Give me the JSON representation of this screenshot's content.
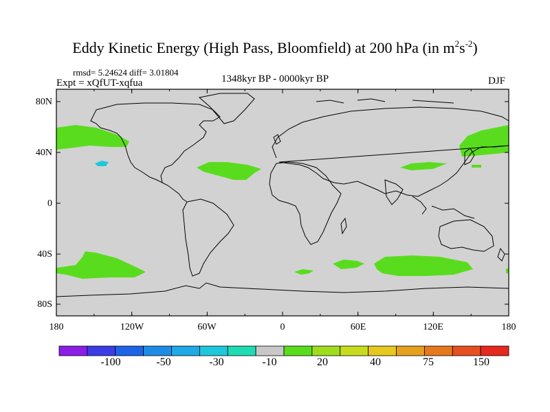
{
  "title": {
    "main": "Eddy Kinetic Energy (High Pass, Bloomfield) at 200 hPa (in m",
    "sup1": "2",
    "mid": "s",
    "sup2": "-2",
    "close": ")"
  },
  "stats": "rmsd= 5.24624 diff= 3.01804",
  "experiment": "Expt = xQfUT-xqfua",
  "period": "1348kyr BP - 0000kyr BP",
  "season": "DJF",
  "lat_labels": [
    "80N",
    "40N",
    "0",
    "40S",
    "80S"
  ],
  "lon_labels": [
    "180",
    "120W",
    "60W",
    "0",
    "60E",
    "120E",
    "180"
  ],
  "colorbar": {
    "colors": [
      "#8c1ee6",
      "#3c3ce6",
      "#1e64e6",
      "#1e8ce6",
      "#1eaae6",
      "#1ec8dc",
      "#1edcb4",
      "#c8c8c8",
      "#5adc1e",
      "#a0dc1e",
      "#c8dc1e",
      "#e6c81e",
      "#e6a01e",
      "#e6781e",
      "#e6501e",
      "#e6281e"
    ],
    "labels": [
      "-100",
      "-50",
      "-30",
      "-10",
      "20",
      "40",
      "75",
      "150"
    ]
  },
  "map_colors": {
    "background": "#d2d2d2",
    "positive_anomaly": "#5adc1e",
    "negative_anomaly": "#1ec8dc",
    "coastline": "#000000"
  }
}
